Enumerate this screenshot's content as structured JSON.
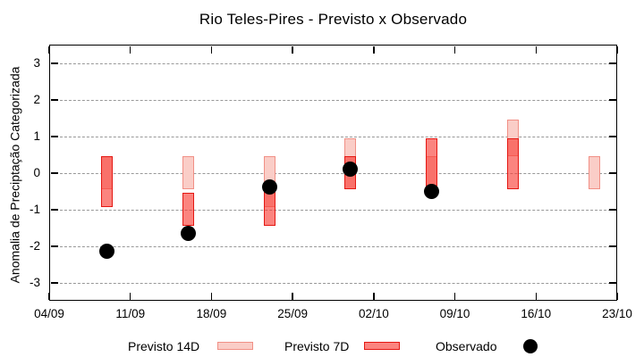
{
  "title": "Rio Teles-Pires - Previsto x Observado",
  "ylabel": "Anomalia de Preciptação Categorizada",
  "chart_data": {
    "type": "bar",
    "subtype": "forecast-range-bars-with-observed-scatter",
    "title": "Rio Teles-Pires - Previsto x Observado",
    "xlabel": "",
    "ylabel": "Anomalia de Preciptação Categorizada",
    "ylim": [
      -3.5,
      3.5
    ],
    "yticks": [
      3,
      2,
      1,
      0,
      -1,
      -2,
      -3
    ],
    "xtick_labels": [
      "04/09",
      "11/09",
      "18/09",
      "25/09",
      "02/10",
      "09/10",
      "16/10",
      "23/10"
    ],
    "xtick_days": [
      0,
      7,
      14,
      21,
      28,
      35,
      42,
      49
    ],
    "x_axis_span_days": 49,
    "grid": "horizontal-dashed",
    "legend_position": "below-plot",
    "colors": {
      "previsto_14d_fill": "#FACDC7",
      "previsto_14d_border": "#F19086",
      "previsto_7d_fill_rgba": "rgba(248,57,48,0.62)",
      "previsto_7d_fill_flat": "#FB847F",
      "previsto_7d_border": "#E41813",
      "overlap_fill_flat": "#F97169",
      "observado": "#000000",
      "gridline": "#989898"
    },
    "series": [
      {
        "name": "Previsto 14D",
        "type": "range-bar",
        "points": [
          {
            "date": "09/09",
            "day": 5,
            "low": -0.45,
            "high": 0.45
          },
          {
            "date": "16/09",
            "day": 12,
            "low": -0.45,
            "high": 0.45
          },
          {
            "date": "23/09",
            "day": 19,
            "low": -0.95,
            "high": 0.45
          },
          {
            "date": "30/09",
            "day": 26,
            "low": -0.45,
            "high": 0.95
          },
          {
            "date": "07/10",
            "day": 33,
            "low": -0.45,
            "high": 0.45
          },
          {
            "date": "14/10",
            "day": 40,
            "low": 0.45,
            "high": 1.45
          },
          {
            "date": "21/10",
            "day": 47,
            "low": -0.45,
            "high": 0.45
          }
        ]
      },
      {
        "name": "Previsto 7D",
        "type": "range-bar",
        "points": [
          {
            "date": "09/09",
            "day": 5,
            "low": -0.95,
            "high": 0.45
          },
          {
            "date": "16/09",
            "day": 12,
            "low": -1.45,
            "high": -0.55
          },
          {
            "date": "23/09",
            "day": 19,
            "low": -1.45,
            "high": -0.45
          },
          {
            "date": "30/09",
            "day": 26,
            "low": -0.45,
            "high": 0.45
          },
          {
            "date": "07/10",
            "day": 33,
            "low": -0.45,
            "high": 0.95
          },
          {
            "date": "14/10",
            "day": 40,
            "low": -0.45,
            "high": 0.95
          }
        ]
      },
      {
        "name": "Observado",
        "type": "scatter",
        "points": [
          {
            "date": "09/09",
            "day": 5,
            "value": -2.15
          },
          {
            "date": "16/09",
            "day": 12,
            "value": -1.65
          },
          {
            "date": "23/09",
            "day": 19,
            "value": -0.4
          },
          {
            "date": "30/09",
            "day": 26,
            "value": 0.1
          },
          {
            "date": "07/10",
            "day": 33,
            "value": -0.5
          }
        ]
      }
    ]
  }
}
